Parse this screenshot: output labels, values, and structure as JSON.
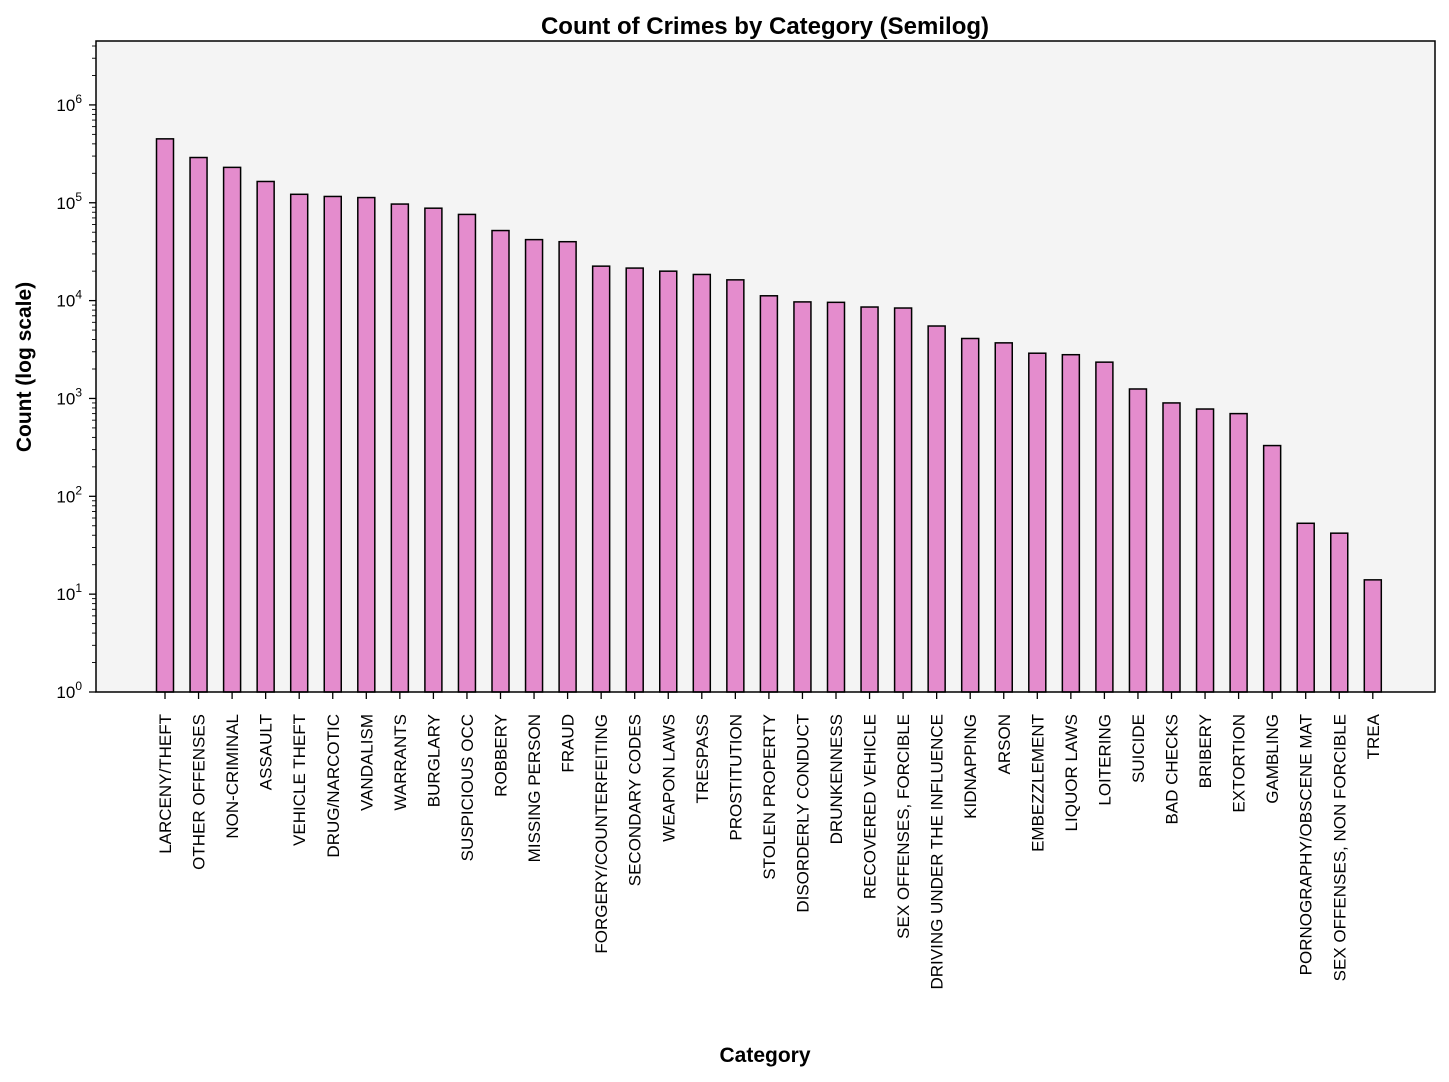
{
  "chart_data": {
    "type": "bar",
    "title": "Count of Crimes by Category (Semilog)",
    "xlabel": "Category",
    "ylabel": "Count (log scale)",
    "yscale": "log",
    "ylim": [
      1,
      4500000
    ],
    "yticks": [
      1,
      10,
      100,
      1000,
      10000,
      100000,
      1000000
    ],
    "ytick_labels": [
      {
        "base": "10",
        "exp": "0"
      },
      {
        "base": "10",
        "exp": "1"
      },
      {
        "base": "10",
        "exp": "2"
      },
      {
        "base": "10",
        "exp": "3"
      },
      {
        "base": "10",
        "exp": "4"
      },
      {
        "base": "10",
        "exp": "5"
      },
      {
        "base": "10",
        "exp": "6"
      }
    ],
    "grid": false,
    "legend": "none",
    "colors": {
      "bar_fill": "#e48ccd",
      "bar_edge": "#000000",
      "plot_background": "#f4f4f4"
    },
    "categories": [
      "LARCENY/THEFT",
      "OTHER OFFENSES",
      "NON-CRIMINAL",
      "ASSAULT",
      "VEHICLE THEFT",
      "DRUG/NARCOTIC",
      "VANDALISM",
      "WARRANTS",
      "BURGLARY",
      "SUSPICIOUS OCC",
      "ROBBERY",
      "MISSING PERSON",
      "FRAUD",
      "FORGERY/COUNTERFEITING",
      "SECONDARY CODES",
      "WEAPON LAWS",
      "TRESPASS",
      "PROSTITUTION",
      "STOLEN PROPERTY",
      "DISORDERLY CONDUCT",
      "DRUNKENNESS",
      "RECOVERED VEHICLE",
      "SEX OFFENSES, FORCIBLE",
      "DRIVING UNDER THE INFLUENCE",
      "KIDNAPPING",
      "ARSON",
      "EMBEZZLEMENT",
      "LIQUOR LAWS",
      "LOITERING",
      "SUICIDE",
      "BAD CHECKS",
      "BRIBERY",
      "EXTORTION",
      "GAMBLING",
      "PORNOGRAPHY/OBSCENE MAT",
      "SEX OFFENSES, NON FORCIBLE",
      "TREA"
    ],
    "values": [
      450000,
      290000,
      230000,
      165000,
      122000,
      116000,
      113000,
      97000,
      88000,
      76000,
      52000,
      42000,
      40000,
      22500,
      21500,
      20000,
      18500,
      16300,
      11200,
      9700,
      9600,
      8600,
      8400,
      5500,
      4100,
      3700,
      2900,
      2800,
      2350,
      1250,
      900,
      780,
      700,
      330,
      53,
      42,
      14
    ]
  }
}
